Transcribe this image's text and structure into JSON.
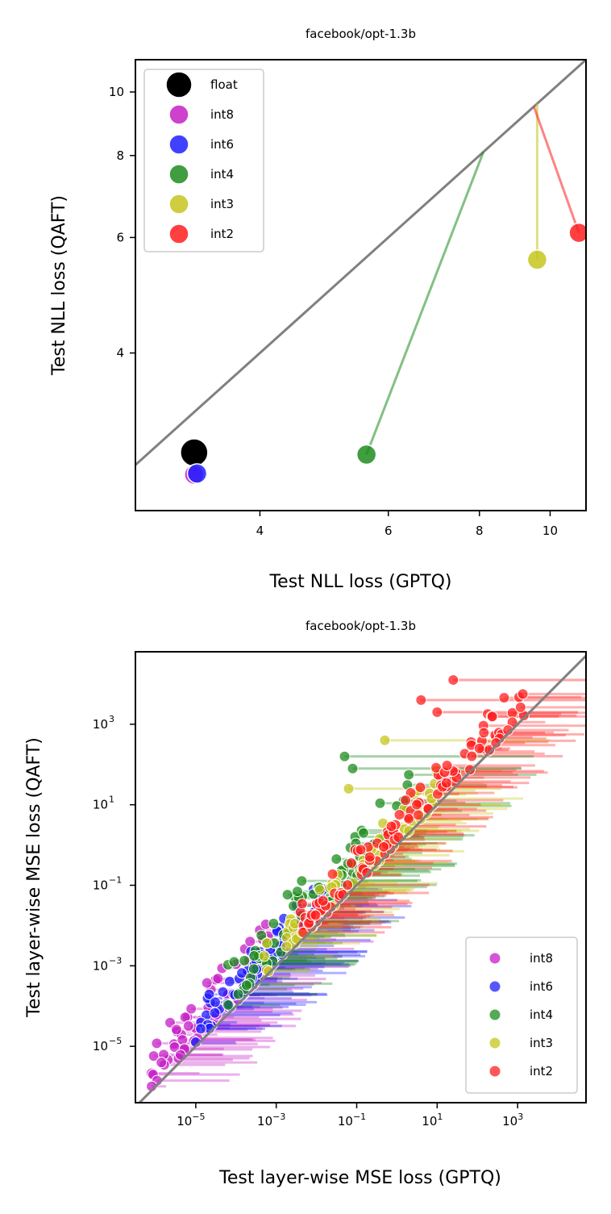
{
  "chart_data": [
    {
      "type": "scatter",
      "title": "facebook/opt-1.3b",
      "xlabel": "Test NLL loss (GPTQ)",
      "ylabel": "Test NLL loss (QAFT)",
      "xscale": "log",
      "yscale": "log",
      "xlim": [
        2.7,
        11.2
      ],
      "ylim": [
        2.3,
        11.2
      ],
      "xticks": [
        {
          "v": 4,
          "label": "4"
        },
        {
          "v": 6,
          "label": "6"
        },
        {
          "v": 8,
          "label": "8"
        },
        {
          "v": 10,
          "label": "10"
        }
      ],
      "yticks": [
        {
          "v": 4,
          "label": "4"
        },
        {
          "v": 6,
          "label": "6"
        },
        {
          "v": 8,
          "label": "8"
        },
        {
          "v": 10,
          "label": "10"
        }
      ],
      "diagonal": true,
      "legend_position": "upper-left",
      "series": [
        {
          "name": "float",
          "color": "#000000",
          "big": true,
          "points": [
            {
              "x": 3.25,
              "y": 2.82
            }
          ]
        },
        {
          "name": "int8",
          "color": "#c51ec5",
          "points": [
            {
              "x": 3.25,
              "y": 2.61,
              "x_end": 3.25,
              "y_end": 2.82
            }
          ]
        },
        {
          "name": "int6",
          "color": "#1e1eff",
          "points": [
            {
              "x": 3.28,
              "y": 2.62,
              "x_end": 3.25,
              "y_end": 2.82
            }
          ]
        },
        {
          "name": "int4",
          "color": "#1e8c1e",
          "points": [
            {
              "x": 5.6,
              "y": 2.8,
              "x_end": 8.1,
              "y_end": 8.1
            }
          ]
        },
        {
          "name": "int3",
          "color": "#c5c51e",
          "points": [
            {
              "x": 9.6,
              "y": 5.55,
              "x_end": 9.6,
              "y_end": 9.6
            }
          ]
        },
        {
          "name": "int2",
          "color": "#ff1e1e",
          "points": [
            {
              "x": 10.95,
              "y": 6.1,
              "x_end": 9.5,
              "y_end": 9.5
            }
          ]
        }
      ]
    },
    {
      "type": "scatter",
      "title": "facebook/opt-1.3b",
      "xlabel": "Test layer-wise MSE loss (GPTQ)",
      "ylabel": "Test layer-wise MSE loss (QAFT)",
      "xscale": "log",
      "yscale": "log",
      "xlim_log10": [
        -6.5,
        4.7
      ],
      "ylim_log10": [
        -6.4,
        4.8
      ],
      "xticks": [
        {
          "exp": -5,
          "base": "10",
          "sup": "−5"
        },
        {
          "exp": -3,
          "base": "10",
          "sup": "−3"
        },
        {
          "exp": -1,
          "base": "10",
          "sup": "−1"
        },
        {
          "exp": 1,
          "base": "10",
          "sup": "1"
        },
        {
          "exp": 3,
          "base": "10",
          "sup": "3"
        }
      ],
      "yticks": [
        {
          "exp": -5,
          "base": "10",
          "sup": "−5"
        },
        {
          "exp": -3,
          "base": "10",
          "sup": "−3"
        },
        {
          "exp": -1,
          "base": "10",
          "sup": "−1"
        },
        {
          "exp": 1,
          "base": "10",
          "sup": "1"
        },
        {
          "exp": 3,
          "base": "10",
          "sup": "3"
        }
      ],
      "diagonal": true,
      "legend_position": "lower-right",
      "series": [
        {
          "name": "int8",
          "color": "#c51ec5",
          "range_log10": [
            -6.1,
            -3.2
          ],
          "gap_log10": [
            0.1,
            1.3
          ],
          "n": 70,
          "seed": 11
        },
        {
          "name": "int6",
          "color": "#1e1eff",
          "range_log10": [
            -5.0,
            -1.8
          ],
          "gap_log10": [
            0.1,
            1.0
          ],
          "n": 80,
          "seed": 23
        },
        {
          "name": "int4",
          "color": "#1e8c1e",
          "range_log10": [
            -4.2,
            0.3
          ],
          "gap_log10": [
            0.15,
            1.5
          ],
          "n": 80,
          "seed": 37
        },
        {
          "name": "int3",
          "color": "#c5c51e",
          "range_log10": [
            -3.3,
            1.0
          ],
          "gap_log10": [
            0.05,
            0.9
          ],
          "n": 80,
          "seed": 51
        },
        {
          "name": "int2",
          "color": "#ff1e1e",
          "range_log10": [
            -2.4,
            3.2
          ],
          "gap_log10": [
            0.05,
            1.0
          ],
          "n": 110,
          "seed": 67
        }
      ],
      "highlight_lines": [
        {
          "series": "int4",
          "x_log10": -1.3,
          "y_log10": 2.2
        },
        {
          "series": "int4",
          "x_log10": -1.1,
          "y_log10": 1.9
        },
        {
          "series": "int3",
          "x_log10": -0.3,
          "y_log10": 2.6
        },
        {
          "series": "int3",
          "x_log10": -1.2,
          "y_log10": 1.4
        },
        {
          "series": "int2",
          "x_log10": 0.6,
          "y_log10": 3.6
        },
        {
          "series": "int2",
          "x_log10": 1.0,
          "y_log10": 3.3
        },
        {
          "series": "int2",
          "x_log10": 1.4,
          "y_log10": 4.1
        }
      ]
    }
  ]
}
